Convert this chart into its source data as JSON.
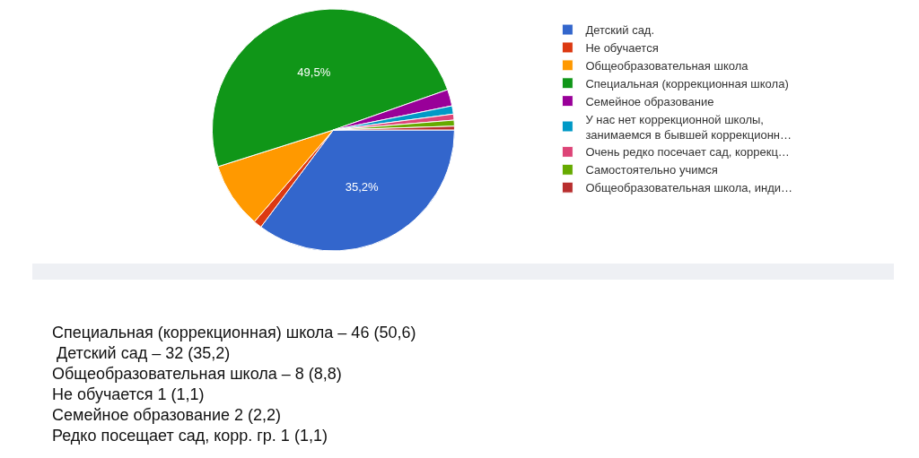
{
  "chart_data": {
    "type": "pie",
    "categories": [
      "Детский сад.",
      "Не обучается",
      "Общеобразовательная школа",
      "Специальная (коррекционная школа)",
      "Семейное образование",
      "У нас нет коррекционной школы,\nзанимаемся в бывшей коррекционн…",
      "Очень редко посечает сад, коррекц…",
      "Самостоятельно учимся",
      "Общеобразовательная школа, инди…"
    ],
    "values": [
      35.2,
      1.1,
      8.8,
      49.5,
      2.2,
      1.1,
      0.8,
      0.8,
      0.5
    ],
    "colors": [
      "#3366cc",
      "#dc3912",
      "#ff9900",
      "#109618",
      "#990099",
      "#0099c6",
      "#dd4477",
      "#66aa00",
      "#b82e2e"
    ],
    "value_labels": [
      "35,2%",
      null,
      null,
      "49,5%",
      null,
      null,
      null,
      null,
      null
    ],
    "legend": "right",
    "annotations": [
      "Специальная (коррекционная) школа – 46 (50,6)",
      " Детский сад – 32 (35,2)",
      "Общеобразовательная школа – 8 (8,8)",
      "Не обучается 1 (1,1)",
      "Семейное образование 2 (2,2)",
      "Редко посещает сад, корр. гр. 1 (1,1)"
    ]
  }
}
